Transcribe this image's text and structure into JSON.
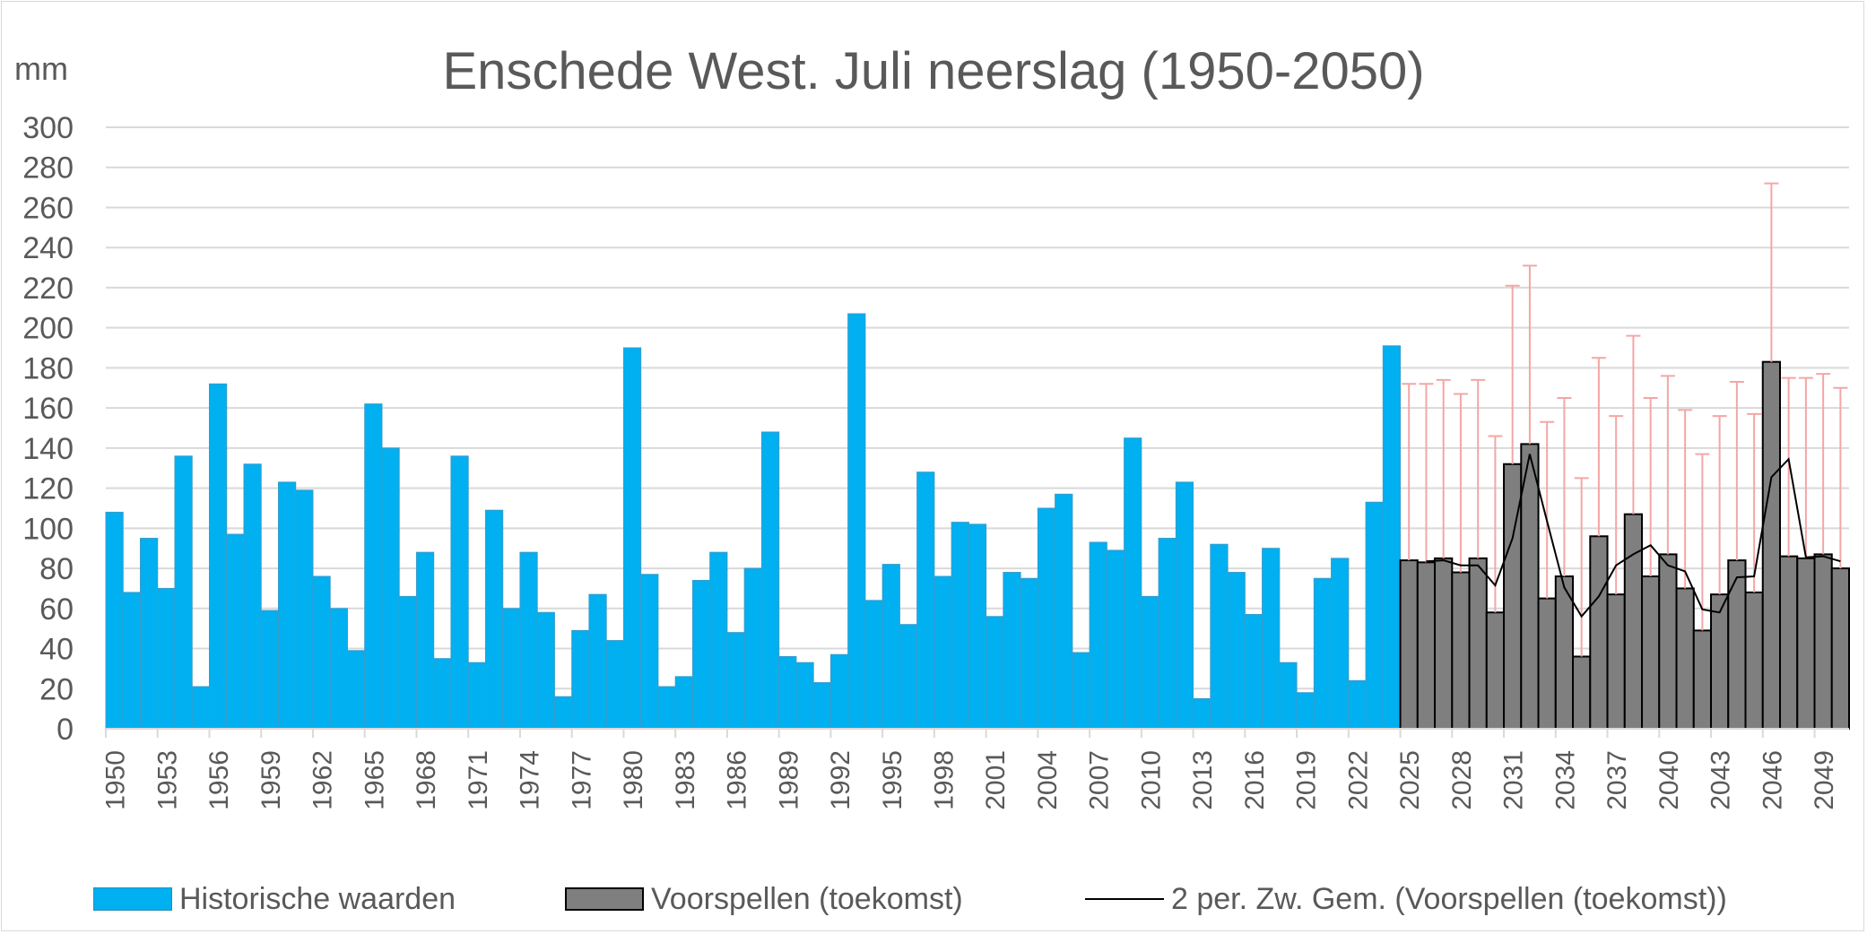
{
  "chart_data": {
    "type": "bar",
    "title": "Enschede West. Juli neerslag (1950-2050)",
    "ylabel": "mm",
    "xlabel": "",
    "ylim": [
      0,
      300
    ],
    "yticks": [
      0,
      20,
      40,
      60,
      80,
      100,
      120,
      140,
      160,
      180,
      200,
      220,
      240,
      260,
      280,
      300
    ],
    "grid": true,
    "legend_position": "bottom",
    "x_start": 1950,
    "x_tick_step": 3,
    "historical": {
      "name": "Historische waarden",
      "color": "#00b0f0",
      "start_year": 1950,
      "values": [
        108,
        68,
        95,
        70,
        136,
        21,
        172,
        97,
        132,
        59,
        123,
        119,
        76,
        60,
        39,
        162,
        140,
        66,
        88,
        35,
        136,
        33,
        109,
        60,
        88,
        58,
        16,
        49,
        67,
        44,
        190,
        77,
        21,
        26,
        74,
        88,
        48,
        80,
        148,
        36,
        33,
        23,
        37,
        207,
        64,
        82,
        52,
        128,
        76,
        103,
        102,
        56,
        78,
        75,
        110,
        117,
        38,
        93,
        89,
        145,
        66,
        95,
        123,
        15,
        92,
        78,
        57,
        90,
        33,
        18,
        75,
        85,
        24,
        113,
        191
      ]
    },
    "forecast": {
      "name": "Voorspellen (toekomst)",
      "color": "#7f7f7f",
      "start_year": 2025,
      "values": [
        84,
        83,
        85,
        78,
        85,
        58,
        132,
        142,
        65,
        76,
        36,
        96,
        67,
        107,
        76,
        87,
        70,
        49,
        67,
        84,
        68,
        183,
        86,
        85,
        87,
        80
      ],
      "error_upper": [
        172,
        172,
        174,
        167,
        174,
        146,
        221,
        231,
        153,
        165,
        125,
        185,
        156,
        196,
        165,
        176,
        159,
        137,
        156,
        173,
        157,
        272,
        175,
        175,
        177,
        170
      ],
      "error_bar_color": "#f4a6a6"
    },
    "moving_average": {
      "name": "2 per. Zw. Gem. (Voorspellen (toekomst))",
      "color": "#000000",
      "start_year": 2026,
      "values": [
        83.5,
        84,
        81.5,
        81.5,
        71.5,
        95,
        137,
        103.5,
        70.5,
        56,
        66,
        81.5,
        87,
        91.5,
        81.5,
        78.5,
        59.5,
        58,
        75.5,
        76,
        125.5,
        134.5,
        85.5,
        86,
        83.5
      ]
    }
  }
}
